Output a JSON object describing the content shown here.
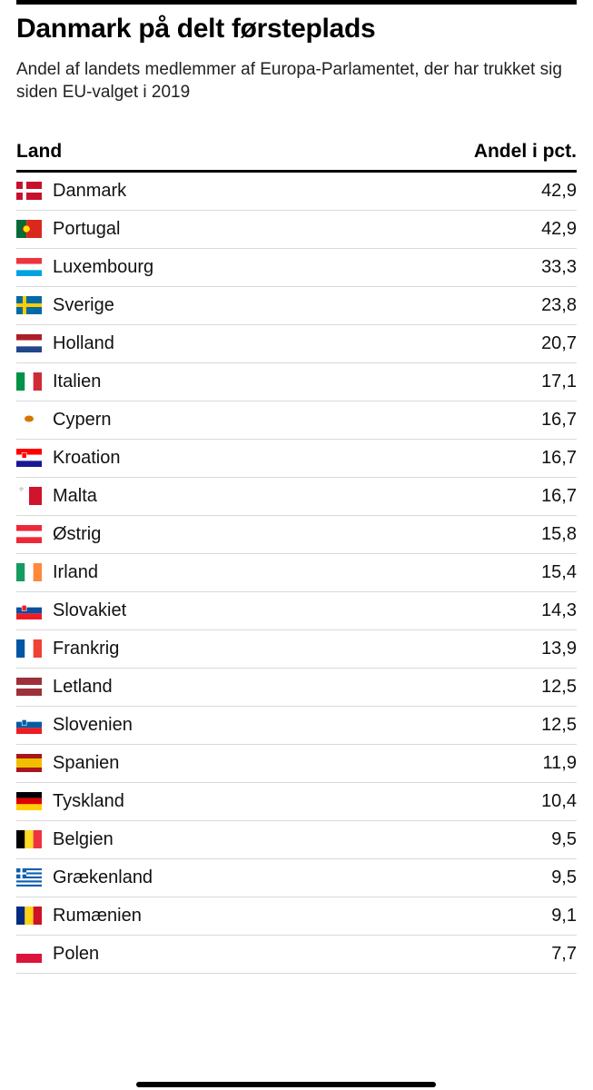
{
  "title": "Danmark på delt førsteplads",
  "subtitle": "Andel af landets medlemmer af Europa-Parlamentet, der har trukket sig siden EU-valget i 2019",
  "columns": {
    "country": "Land",
    "value": "Andel i pct."
  },
  "table": {
    "type": "table",
    "row_border_color": "#d9d9d9",
    "header_border_color": "#000000",
    "background_color": "#ffffff",
    "text_color": "#111111",
    "title_fontsize": 30,
    "header_fontsize": 21,
    "body_fontsize": 20,
    "flag_size": {
      "w": 28,
      "h": 20
    }
  },
  "rows": [
    {
      "country": "Danmark",
      "value": "42,9",
      "flag": "dk"
    },
    {
      "country": "Portugal",
      "value": "42,9",
      "flag": "pt"
    },
    {
      "country": "Luxembourg",
      "value": "33,3",
      "flag": "lu"
    },
    {
      "country": "Sverige",
      "value": "23,8",
      "flag": "se"
    },
    {
      "country": "Holland",
      "value": "20,7",
      "flag": "nl"
    },
    {
      "country": "Italien",
      "value": "17,1",
      "flag": "it"
    },
    {
      "country": "Cypern",
      "value": "16,7",
      "flag": "cy"
    },
    {
      "country": "Kroation",
      "value": "16,7",
      "flag": "hr"
    },
    {
      "country": "Malta",
      "value": "16,7",
      "flag": "mt"
    },
    {
      "country": "Østrig",
      "value": "15,8",
      "flag": "at"
    },
    {
      "country": "Irland",
      "value": "15,4",
      "flag": "ie"
    },
    {
      "country": "Slovakiet",
      "value": "14,3",
      "flag": "sk"
    },
    {
      "country": "Frankrig",
      "value": "13,9",
      "flag": "fr"
    },
    {
      "country": "Letland",
      "value": "12,5",
      "flag": "lv"
    },
    {
      "country": "Slovenien",
      "value": "12,5",
      "flag": "si"
    },
    {
      "country": "Spanien",
      "value": "11,9",
      "flag": "es"
    },
    {
      "country": "Tyskland",
      "value": "10,4",
      "flag": "de"
    },
    {
      "country": "Belgien",
      "value": "9,5",
      "flag": "be"
    },
    {
      "country": "Grækenland",
      "value": "9,5",
      "flag": "gr"
    },
    {
      "country": "Rumænien",
      "value": "9,1",
      "flag": "ro"
    },
    {
      "country": "Polen",
      "value": "7,7",
      "flag": "pl"
    }
  ],
  "flags": {
    "dk": {
      "bg": "#c8102e",
      "type": "scand-cross",
      "cross": "#ffffff"
    },
    "pt": {
      "type": "v2-emblem",
      "c1": "#046a38",
      "w1": 0.4,
      "c2": "#da291c",
      "emblem": "#ffe900"
    },
    "lu": {
      "type": "h3",
      "c1": "#ef3340",
      "c2": "#ffffff",
      "c3": "#00a3e0"
    },
    "se": {
      "bg": "#006aa7",
      "type": "scand-cross",
      "cross": "#fecc00"
    },
    "nl": {
      "type": "h3",
      "c1": "#ae1c28",
      "c2": "#ffffff",
      "c3": "#21468b"
    },
    "it": {
      "type": "v3",
      "c1": "#009246",
      "c2": "#ffffff",
      "c3": "#ce2b37"
    },
    "cy": {
      "type": "plain-emblem",
      "bg": "#ffffff",
      "emblem": "#d57800"
    },
    "hr": {
      "type": "h3-emblem",
      "c1": "#ff0000",
      "c2": "#ffffff",
      "c3": "#171796",
      "emblem": "#ff0000"
    },
    "mt": {
      "type": "v2-cross",
      "c1": "#ffffff",
      "c2": "#cf142b",
      "cross": "#cccccc"
    },
    "at": {
      "type": "h3",
      "c1": "#ed2939",
      "c2": "#ffffff",
      "c3": "#ed2939"
    },
    "ie": {
      "type": "v3",
      "c1": "#169b62",
      "c2": "#ffffff",
      "c3": "#ff883e"
    },
    "sk": {
      "type": "h3-emblem",
      "c1": "#ffffff",
      "c2": "#0b4ea2",
      "c3": "#ee1c25",
      "emblem": "#ee1c25"
    },
    "fr": {
      "type": "v3",
      "c1": "#0055a4",
      "c2": "#ffffff",
      "c3": "#ef4135"
    },
    "lv": {
      "type": "h3w",
      "c1": "#9e3039",
      "c2": "#ffffff",
      "c3": "#9e3039",
      "w2": 0.2
    },
    "si": {
      "type": "h3-emblem",
      "c1": "#ffffff",
      "c2": "#005da4",
      "c3": "#ed1c24",
      "emblem": "#005da4"
    },
    "es": {
      "type": "h3w",
      "c1": "#aa151b",
      "c2": "#f1bf00",
      "c3": "#aa151b",
      "w2": 0.5
    },
    "de": {
      "type": "h3",
      "c1": "#000000",
      "c2": "#dd0000",
      "c3": "#ffce00"
    },
    "be": {
      "type": "v3",
      "c1": "#000000",
      "c2": "#fdda24",
      "c3": "#ef3340"
    },
    "gr": {
      "type": "gr"
    },
    "ro": {
      "type": "v3",
      "c1": "#002b7f",
      "c2": "#fcd116",
      "c3": "#ce1126"
    },
    "pl": {
      "type": "h2",
      "c1": "#ffffff",
      "c2": "#dc143c"
    }
  }
}
